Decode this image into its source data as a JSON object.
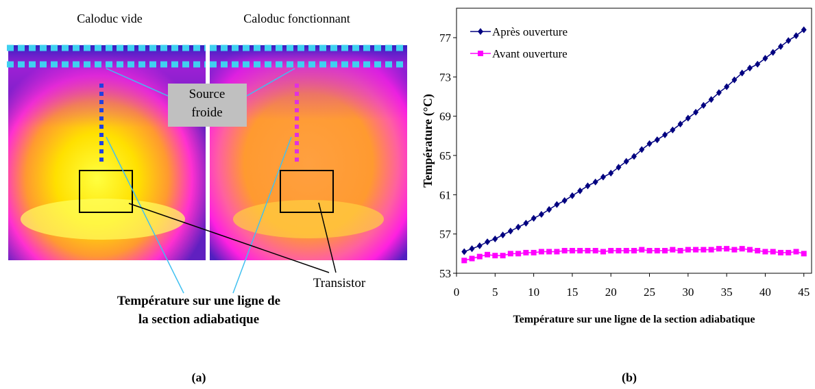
{
  "panel_a": {
    "titles": [
      "Caloduc vide",
      "Caloduc fonctionnant"
    ],
    "source_label": [
      "Source",
      "froide"
    ],
    "transistor_label": "Transistor",
    "line_label": [
      "Température sur une ligne de",
      "la section adiabatique"
    ],
    "caption": "(a)"
  },
  "panel_b": {
    "caption": "(b)"
  },
  "chart_data": {
    "type": "line",
    "x": [
      1,
      2,
      3,
      4,
      5,
      6,
      7,
      8,
      9,
      10,
      11,
      12,
      13,
      14,
      15,
      16,
      17,
      18,
      19,
      20,
      21,
      22,
      23,
      24,
      25,
      26,
      27,
      28,
      29,
      30,
      31,
      32,
      33,
      34,
      35,
      36,
      37,
      38,
      39,
      40,
      41,
      42,
      43,
      44,
      45
    ],
    "series": [
      {
        "name": "Après ouverture",
        "color": "#000080",
        "marker": "diamond",
        "values": [
          55.2,
          55.5,
          55.8,
          56.2,
          56.5,
          56.9,
          57.3,
          57.7,
          58.1,
          58.6,
          59.0,
          59.5,
          60.0,
          60.4,
          60.9,
          61.4,
          61.9,
          62.3,
          62.8,
          63.2,
          63.8,
          64.4,
          64.9,
          65.6,
          66.2,
          66.6,
          67.1,
          67.6,
          68.2,
          68.8,
          69.4,
          70.1,
          70.7,
          71.4,
          72.0,
          72.7,
          73.4,
          73.9,
          74.3,
          74.9,
          75.5,
          76.1,
          76.7,
          77.2,
          77.8
        ]
      },
      {
        "name": "Avant ouverture",
        "color": "#ff00ff",
        "marker": "square",
        "values": [
          54.3,
          54.5,
          54.7,
          54.9,
          54.8,
          54.8,
          55.0,
          55.0,
          55.1,
          55.1,
          55.2,
          55.2,
          55.2,
          55.3,
          55.3,
          55.3,
          55.3,
          55.3,
          55.2,
          55.3,
          55.3,
          55.3,
          55.3,
          55.4,
          55.3,
          55.3,
          55.3,
          55.4,
          55.3,
          55.4,
          55.4,
          55.4,
          55.4,
          55.5,
          55.5,
          55.4,
          55.5,
          55.4,
          55.3,
          55.2,
          55.2,
          55.1,
          55.1,
          55.2,
          55.0
        ]
      }
    ],
    "xlabel": "Température sur une ligne de la section adiabatique",
    "ylabel": "Température (°C)",
    "xlim": [
      0,
      46
    ],
    "xticks": [
      0,
      5,
      10,
      15,
      20,
      25,
      30,
      35,
      40,
      45
    ],
    "ylim": [
      53,
      80
    ],
    "yticks": [
      53,
      57,
      61,
      65,
      69,
      73,
      77
    ],
    "legend": "upper left"
  }
}
